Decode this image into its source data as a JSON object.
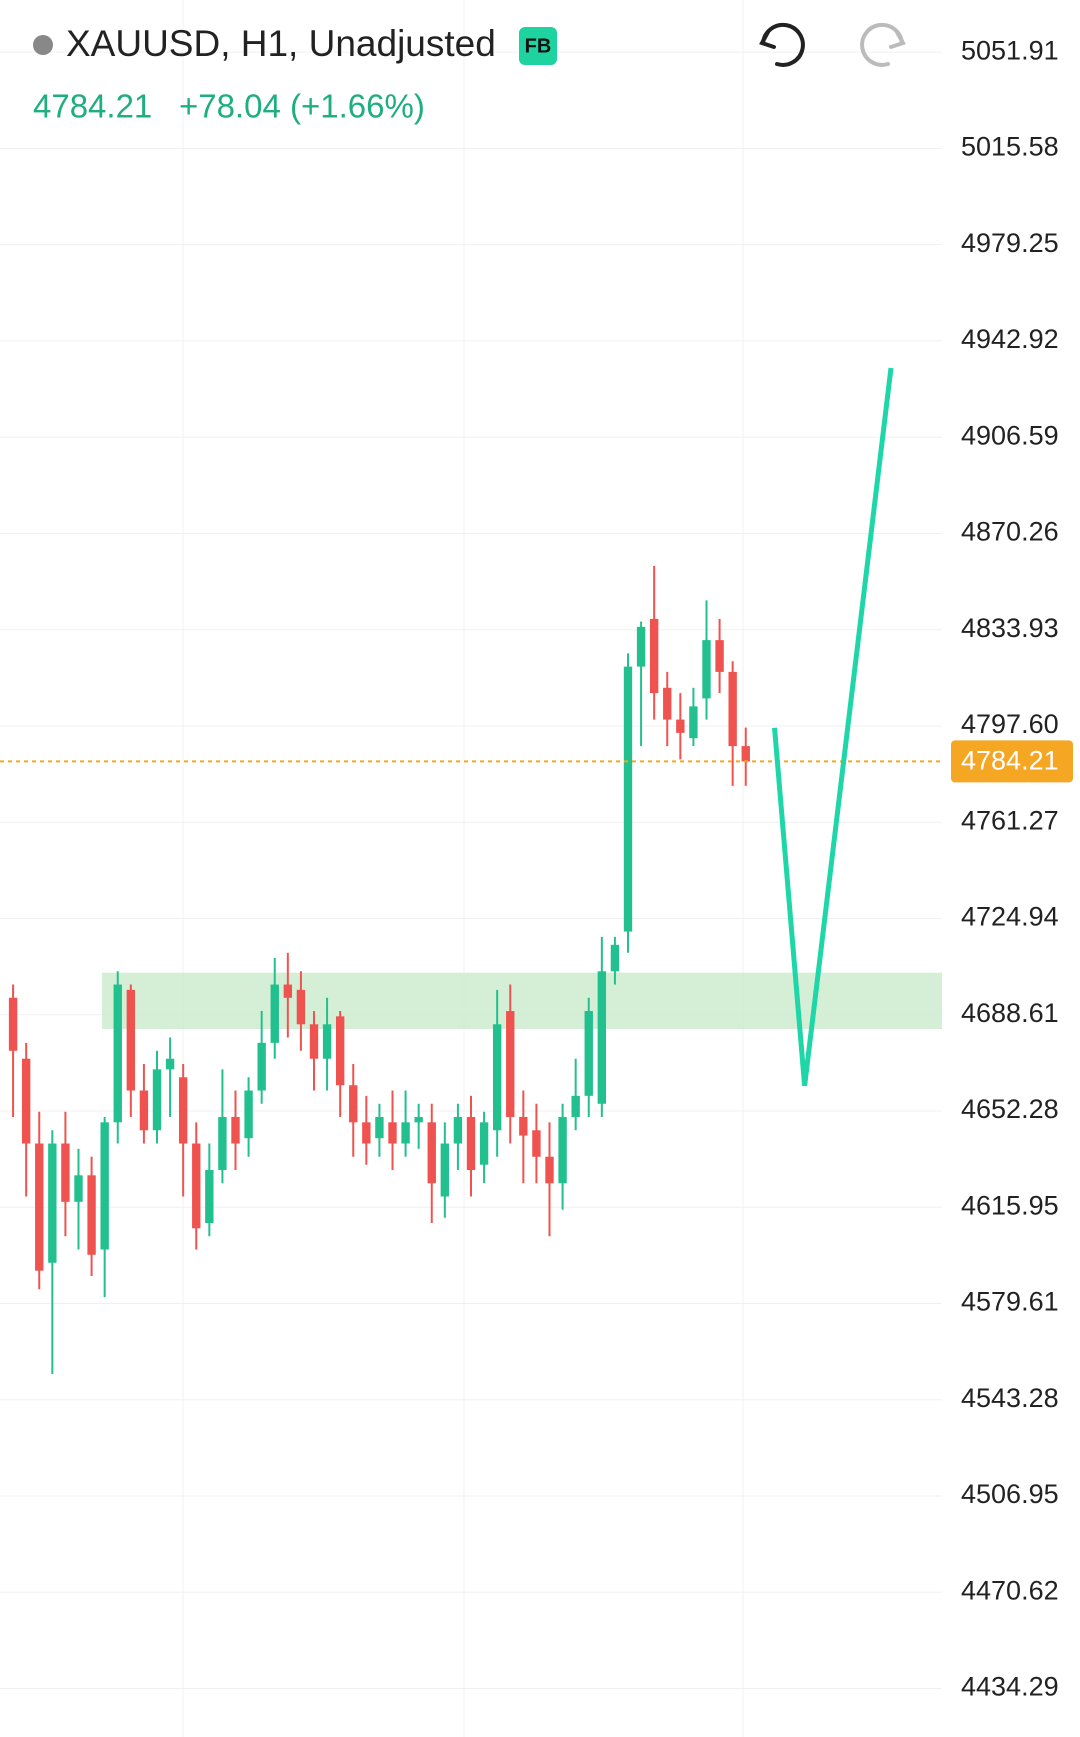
{
  "chart_data": {
    "type": "candlestick",
    "title": "XAUUSD, H1, Unadjusted",
    "badge": "FB",
    "price": "4784.21",
    "change": "+78.04 (+1.66%)",
    "up_color": "#22c08f",
    "down_color": "#ef5350",
    "open": [
      4695,
      4672,
      4640,
      4595,
      4640,
      4618,
      4628,
      4600,
      4648,
      4698,
      4660,
      4645,
      4668,
      4665,
      4640,
      4610,
      4630,
      4650,
      4642,
      4660,
      4678,
      4700,
      4698,
      4685,
      4672,
      4688,
      4662,
      4648,
      4642,
      4648,
      4640,
      4648,
      4648,
      4620,
      4640,
      4650,
      4632,
      4645,
      4690,
      4650,
      4645,
      4635,
      4625,
      4650,
      4658,
      4655,
      4705,
      4720,
      4820,
      4838,
      4812,
      4800,
      4793,
      4808,
      4830,
      4818,
      4790
    ],
    "high": [
      4700,
      4678,
      4652,
      4645,
      4652,
      4638,
      4635,
      4650,
      4705,
      4700,
      4670,
      4675,
      4680,
      4670,
      4648,
      4640,
      4668,
      4660,
      4665,
      4690,
      4710,
      4712,
      4705,
      4690,
      4695,
      4690,
      4670,
      4658,
      4655,
      4660,
      4660,
      4655,
      4655,
      4648,
      4655,
      4658,
      4652,
      4698,
      4700,
      4660,
      4655,
      4648,
      4655,
      4672,
      4695,
      4718,
      4718,
      4825,
      4837,
      4858,
      4818,
      4810,
      4812,
      4845,
      4838,
      4822,
      4797
    ],
    "low": [
      4650,
      4620,
      4585,
      4553,
      4605,
      4600,
      4590,
      4582,
      4640,
      4650,
      4640,
      4640,
      4650,
      4620,
      4600,
      4605,
      4625,
      4630,
      4635,
      4655,
      4672,
      4680,
      4675,
      4660,
      4660,
      4650,
      4635,
      4632,
      4635,
      4630,
      4635,
      4638,
      4610,
      4612,
      4630,
      4620,
      4625,
      4635,
      4640,
      4625,
      4625,
      4605,
      4615,
      4645,
      4650,
      4650,
      4700,
      4712,
      4790,
      4800,
      4790,
      4785,
      4790,
      4800,
      4810,
      4775,
      4775
    ],
    "close": [
      4675,
      4640,
      4592,
      4640,
      4618,
      4628,
      4598,
      4648,
      4700,
      4660,
      4645,
      4668,
      4672,
      4640,
      4608,
      4630,
      4650,
      4640,
      4660,
      4678,
      4700,
      4695,
      4685,
      4672,
      4685,
      4662,
      4648,
      4640,
      4650,
      4640,
      4648,
      4650,
      4625,
      4640,
      4650,
      4630,
      4648,
      4685,
      4650,
      4643,
      4635,
      4625,
      4650,
      4658,
      4690,
      4705,
      4715,
      4820,
      4835,
      4810,
      4800,
      4795,
      4805,
      4830,
      4818,
      4790,
      4784.21
    ],
    "xlim": [
      -1,
      71
    ],
    "ylim": [
      4416,
      5071.6
    ],
    "yticks": [
      5051.91,
      5015.58,
      4979.25,
      4942.92,
      4906.59,
      4870.26,
      4833.93,
      {
        "value": 4797.6,
        "label": "4797.60"
      },
      4761.27,
      4724.94,
      4688.61,
      4652.28,
      4615.95,
      4579.61,
      4543.28,
      4506.95,
      4470.62,
      4434.29
    ],
    "grid": true,
    "last_price": {
      "value": 4784.21,
      "label": "4784.21",
      "color": "#f5a623"
    },
    "zone": {
      "top": 4704.5,
      "bottom": 4683.2,
      "x": [
        6.8,
        71
      ],
      "color": "#cdeccf"
    },
    "projection": {
      "x": [
        58.2,
        60.5,
        67.1
      ],
      "y": [
        4796.9,
        4661.8,
        4932.7
      ],
      "color": "#1fd6a8"
    }
  }
}
